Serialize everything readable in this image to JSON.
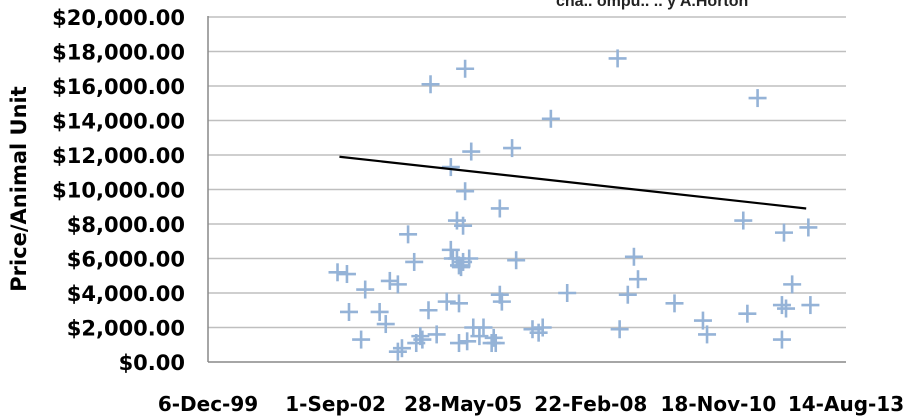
{
  "chart_data": {
    "type": "scatter",
    "title": "",
    "xlabel": "",
    "ylabel": "Price/Animal Unit",
    "corner_note": "cha.. ompu.. .. y A.Horton",
    "x_tick_labels": [
      "6-Dec-99",
      "1-Sep-02",
      "28-May-05",
      "22-Feb-08",
      "18-Nov-10",
      "14-Aug-13"
    ],
    "y_tick_labels": [
      "$0.00",
      "$2,000.00",
      "$4,000.00",
      "$6,000.00",
      "$8,000.00",
      "$10,000.00",
      "$12,000.00",
      "$14,000.00",
      "$16,000.00",
      "$18,000.00",
      "$20,000.00"
    ],
    "xlim": [
      "1999-12-06",
      "2013-08-14"
    ],
    "ylim": [
      0,
      20000
    ],
    "grid": "horizontal",
    "legend": "none",
    "marker": "plus",
    "marker_color": "#95b3d7",
    "trendline": {
      "type": "linear",
      "color": "#000000",
      "points": [
        {
          "x": "2002-10-01",
          "y": 11900
        },
        {
          "x": "2012-10-06",
          "y": 8900
        }
      ]
    },
    "series": [
      {
        "points": [
          {
            "x": "2002-09-16",
            "y": 5200
          },
          {
            "x": "2002-11-29",
            "y": 5100
          },
          {
            "x": "2002-12-15",
            "y": 2900
          },
          {
            "x": "2003-03-20",
            "y": 1300
          },
          {
            "x": "2003-04-21",
            "y": 4200
          },
          {
            "x": "2003-08-12",
            "y": 2900
          },
          {
            "x": "2003-09-29",
            "y": 2200
          },
          {
            "x": "2003-10-31",
            "y": 4700
          },
          {
            "x": "2004-01-02",
            "y": 600
          },
          {
            "x": "2004-01-02",
            "y": 4500
          },
          {
            "x": "2004-02-03",
            "y": 800
          },
          {
            "x": "2004-03-22",
            "y": 7400
          },
          {
            "x": "2004-05-09",
            "y": 5800
          },
          {
            "x": "2004-05-25",
            "y": 1100
          },
          {
            "x": "2004-06-26",
            "y": 1500
          },
          {
            "x": "2004-07-12",
            "y": 1300
          },
          {
            "x": "2004-08-29",
            "y": 3000
          },
          {
            "x": "2004-09-14",
            "y": 16100
          },
          {
            "x": "2004-11-01",
            "y": 1600
          },
          {
            "x": "2005-01-19",
            "y": 3500
          },
          {
            "x": "2005-02-20",
            "y": 11300
          },
          {
            "x": "2005-02-20",
            "y": 6500
          },
          {
            "x": "2005-03-08",
            "y": 6000
          },
          {
            "x": "2005-04-09",
            "y": 8200
          },
          {
            "x": "2005-04-09",
            "y": 6000
          },
          {
            "x": "2005-04-25",
            "y": 5600
          },
          {
            "x": "2005-04-25",
            "y": 3400
          },
          {
            "x": "2005-04-25",
            "y": 1100
          },
          {
            "x": "2005-05-11",
            "y": 5500
          },
          {
            "x": "2005-05-27",
            "y": 7900
          },
          {
            "x": "2005-05-27",
            "y": 5800
          },
          {
            "x": "2005-06-12",
            "y": 17000
          },
          {
            "x": "2005-06-12",
            "y": 9900
          },
          {
            "x": "2005-06-28",
            "y": 1200
          },
          {
            "x": "2005-07-14",
            "y": 6000
          },
          {
            "x": "2005-07-30",
            "y": 12200
          },
          {
            "x": "2005-08-15",
            "y": 2000
          },
          {
            "x": "2005-10-02",
            "y": 1500
          },
          {
            "x": "2005-11-03",
            "y": 2000
          },
          {
            "x": "2006-01-06",
            "y": 1100
          },
          {
            "x": "2006-01-22",
            "y": 1400
          },
          {
            "x": "2006-02-07",
            "y": 1100
          },
          {
            "x": "2006-03-11",
            "y": 8900
          },
          {
            "x": "2006-03-11",
            "y": 3900
          },
          {
            "x": "2006-03-27",
            "y": 3500
          },
          {
            "x": "2006-06-15",
            "y": 12400
          },
          {
            "x": "2006-07-17",
            "y": 5900
          },
          {
            "x": "2006-11-22",
            "y": 1900
          },
          {
            "x": "2007-01-09",
            "y": 1700
          },
          {
            "x": "2007-02-10",
            "y": 2000
          },
          {
            "x": "2007-04-15",
            "y": 14100
          },
          {
            "x": "2007-08-21",
            "y": 4000
          },
          {
            "x": "2008-09-19",
            "y": 17600
          },
          {
            "x": "2008-10-05",
            "y": 1900
          },
          {
            "x": "2008-12-08",
            "y": 3900
          },
          {
            "x": "2009-01-25",
            "y": 6100
          },
          {
            "x": "2009-02-26",
            "y": 4800
          },
          {
            "x": "2009-12-09",
            "y": 3400
          },
          {
            "x": "2010-07-20",
            "y": 2400
          },
          {
            "x": "2010-08-21",
            "y": 1600
          },
          {
            "x": "2011-06-01",
            "y": 8200
          },
          {
            "x": "2011-07-03",
            "y": 2800
          },
          {
            "x": "2011-09-21",
            "y": 15300
          },
          {
            "x": "2012-03-30",
            "y": 3300
          },
          {
            "x": "2012-03-30",
            "y": 1300
          },
          {
            "x": "2012-04-15",
            "y": 7500
          },
          {
            "x": "2012-05-01",
            "y": 3100
          },
          {
            "x": "2012-06-18",
            "y": 4500
          },
          {
            "x": "2012-10-23",
            "y": 7800
          },
          {
            "x": "2012-11-08",
            "y": 3300
          }
        ]
      }
    ]
  }
}
